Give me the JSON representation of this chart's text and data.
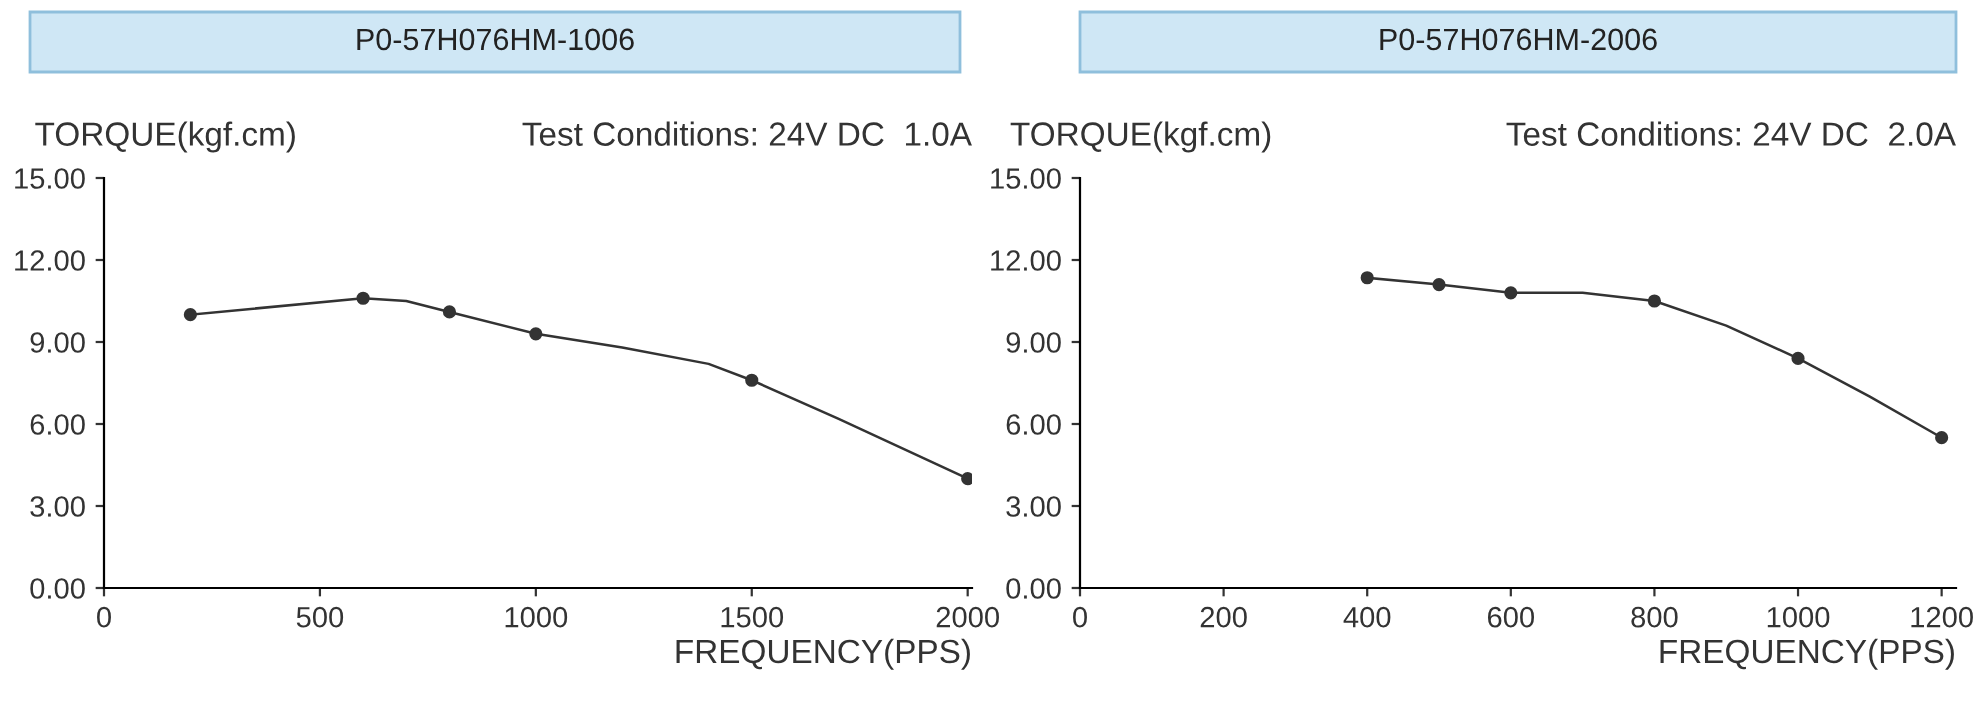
{
  "chart_data": [
    {
      "type": "line",
      "title": "P0-57H076HM-1006",
      "xlabel": "FREQUENCY(PPS)",
      "ylabel": "TORQUE(kgf.cm)",
      "annotations": [
        "Test Conditions: 24V DC  1.0A"
      ],
      "series": [
        {
          "color": "#333333",
          "marker": "none",
          "x": [
            200,
            600,
            700,
            800,
            1000,
            1200,
            1400,
            1500,
            1700,
            2000
          ],
          "values": [
            10.0,
            10.6,
            10.5,
            10.1,
            9.3,
            8.8,
            8.2,
            7.6,
            6.2,
            4.0
          ]
        },
        {
          "type": "scatter",
          "color": "#333333",
          "marker": "circle",
          "x": [
            200,
            600,
            800,
            1000,
            1500,
            2000
          ],
          "values": [
            10.0,
            10.6,
            10.1,
            9.3,
            7.6,
            4.0
          ]
        }
      ],
      "xlim": [
        0,
        2010
      ],
      "xticks": [
        0,
        500,
        1000,
        1500,
        2000
      ],
      "ylim": [
        0,
        15
      ],
      "yticks": [
        {
          "value": 0,
          "label": "0.00"
        },
        {
          "value": 3,
          "label": "3.00"
        },
        {
          "value": 6,
          "label": "6.00"
        },
        {
          "value": 9,
          "label": "9.00"
        },
        {
          "value": 12,
          "label": "12.00"
        },
        {
          "value": 15,
          "label": "15.00"
        }
      ],
      "grid": false,
      "legend": false
    },
    {
      "type": "line",
      "title": "P0-57H076HM-2006",
      "xlabel": "FREQUENCY(PPS)",
      "ylabel": "TORQUE(kgf.cm)",
      "annotations": [
        "Test Conditions: 24V DC  2.0A"
      ],
      "series": [
        {
          "color": "#333333",
          "marker": "none",
          "x": [
            400,
            500,
            600,
            700,
            800,
            900,
            1000,
            1100,
            1200
          ],
          "values": [
            11.35,
            11.1,
            10.8,
            10.8,
            10.5,
            9.6,
            8.4,
            7.0,
            5.5
          ]
        },
        {
          "type": "scatter",
          "color": "#333333",
          "marker": "circle",
          "x": [
            400,
            500,
            600,
            800,
            1000,
            1200
          ],
          "values": [
            11.35,
            11.1,
            10.8,
            10.5,
            8.4,
            5.5
          ]
        }
      ],
      "xlim": [
        0,
        1220
      ],
      "xticks": [
        0,
        200,
        400,
        600,
        800,
        1000,
        1200
      ],
      "ylim": [
        0,
        15
      ],
      "yticks": [
        {
          "value": 0,
          "label": "0.00"
        },
        {
          "value": 3,
          "label": "3.00"
        },
        {
          "value": 6,
          "label": "6.00"
        },
        {
          "value": 9,
          "label": "9.00"
        },
        {
          "value": 12,
          "label": "12.00"
        },
        {
          "value": 15,
          "label": "15.00"
        }
      ],
      "grid": false,
      "legend": false
    }
  ]
}
